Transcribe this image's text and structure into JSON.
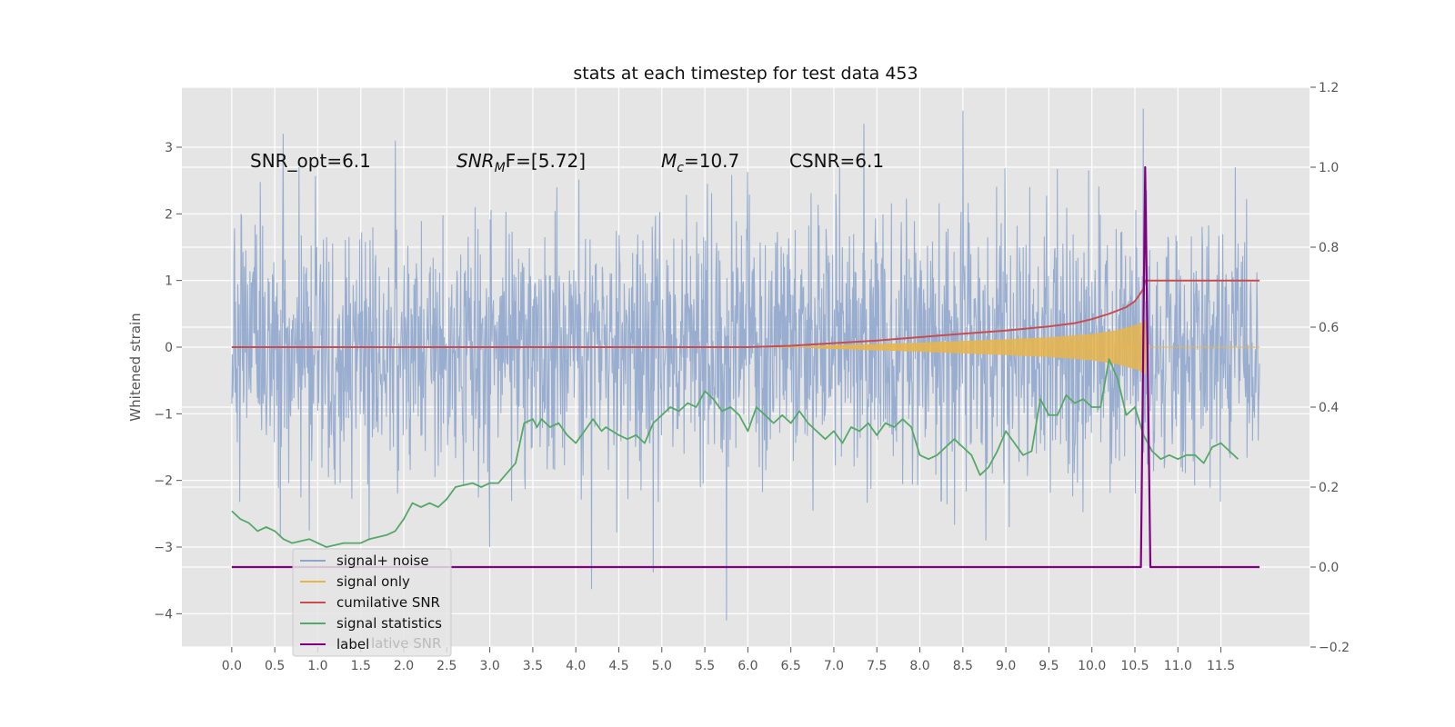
{
  "chart_data": {
    "type": "line",
    "title": "stats at each timestep for test data 453",
    "ylabel": "Whitened strain",
    "xlabel": "",
    "x_range": [
      0,
      11.95
    ],
    "xlim": [
      -0.58,
      12.53
    ],
    "ylim_left": [
      -4.5,
      3.9
    ],
    "ylim_right": [
      -0.2,
      1.2
    ],
    "grid": true,
    "legend_position": "lower-left",
    "x_ticks": [
      "0.0",
      "0.5",
      "1.0",
      "1.5",
      "2.0",
      "2.5",
      "3.0",
      "3.5",
      "4.0",
      "4.5",
      "5.0",
      "5.5",
      "6.0",
      "6.5",
      "7.0",
      "7.5",
      "8.0",
      "8.5",
      "9.0",
      "9.5",
      "10.0",
      "10.5",
      "11.0",
      "11.5"
    ],
    "y_ticks_left": [
      "−4",
      "−3",
      "−2",
      "−1",
      "0",
      "1",
      "2",
      "3"
    ],
    "y_ticks_right": [
      "−0.2",
      "0.0",
      "0.2",
      "0.4",
      "0.6",
      "0.8",
      "1.0",
      "1.2"
    ],
    "annotations": {
      "snr_opt": "SNR_opt=6.1",
      "snr_mf_main": "SNR",
      "snr_mf_sub": "M",
      "snr_mf_tail": "F=[5.72]",
      "mc_main": "M",
      "mc_sub": "c",
      "mc_tail": "=10.7",
      "csnr": "CSNR=6.1"
    },
    "legend": [
      "signal+ noise",
      "signal only",
      "cumilative SNR",
      "signal statistics",
      "label"
    ],
    "legend_overlap_text": "lative SNR",
    "colors": {
      "noise": "#8fa6cc",
      "signal": "#e8b54c",
      "cumulative_snr": "#c44e52",
      "statistics": "#55a868",
      "label": "#800080",
      "plot_bg": "#e5e5e5",
      "grid": "#ffffff"
    },
    "noise": {
      "seed": 453,
      "extreme_points": [
        {
          "x": 4.18,
          "y": -3.63
        },
        {
          "x": 5.75,
          "y": -4.1
        },
        {
          "x": 4.9,
          "y": -3.38
        },
        {
          "x": 3.0,
          "y": -3.0
        },
        {
          "x": 10.6,
          "y": 3.58
        },
        {
          "x": 8.5,
          "y": 3.55
        },
        {
          "x": 7.35,
          "y": 3.35
        },
        {
          "x": 0.6,
          "y": 3.2
        },
        {
          "x": 1.9,
          "y": 3.1
        }
      ]
    },
    "signal_envelope": [
      [
        0.0,
        0.0
      ],
      [
        6.6,
        0.0
      ],
      [
        7.0,
        0.02
      ],
      [
        8.0,
        0.06
      ],
      [
        9.0,
        0.11
      ],
      [
        9.5,
        0.14
      ],
      [
        10.0,
        0.19
      ],
      [
        10.3,
        0.25
      ],
      [
        10.55,
        0.34
      ],
      [
        10.62,
        0.4
      ],
      [
        10.63,
        0.0
      ],
      [
        11.95,
        0.0
      ]
    ],
    "cumulative_snr": [
      [
        0.0,
        0.0
      ],
      [
        6.0,
        0.0
      ],
      [
        6.5,
        0.02
      ],
      [
        7.0,
        0.06
      ],
      [
        7.5,
        0.1
      ],
      [
        8.0,
        0.15
      ],
      [
        8.5,
        0.2
      ],
      [
        9.0,
        0.25
      ],
      [
        9.5,
        0.31
      ],
      [
        9.8,
        0.36
      ],
      [
        10.0,
        0.42
      ],
      [
        10.2,
        0.5
      ],
      [
        10.4,
        0.6
      ],
      [
        10.5,
        0.69
      ],
      [
        10.55,
        0.78
      ],
      [
        10.6,
        0.88
      ],
      [
        10.62,
        1.0
      ],
      [
        11.95,
        1.0
      ]
    ],
    "signal_statistics": [
      [
        0.0,
        0.14
      ],
      [
        0.1,
        0.12
      ],
      [
        0.2,
        0.11
      ],
      [
        0.25,
        0.1
      ],
      [
        0.3,
        0.09
      ],
      [
        0.4,
        0.1
      ],
      [
        0.5,
        0.09
      ],
      [
        0.6,
        0.07
      ],
      [
        0.7,
        0.06
      ],
      [
        0.9,
        0.07
      ],
      [
        1.1,
        0.05
      ],
      [
        1.3,
        0.06
      ],
      [
        1.5,
        0.06
      ],
      [
        1.6,
        0.07
      ],
      [
        1.8,
        0.08
      ],
      [
        1.9,
        0.09
      ],
      [
        2.0,
        0.12
      ],
      [
        2.1,
        0.16
      ],
      [
        2.2,
        0.15
      ],
      [
        2.3,
        0.16
      ],
      [
        2.4,
        0.15
      ],
      [
        2.5,
        0.17
      ],
      [
        2.6,
        0.2
      ],
      [
        2.8,
        0.21
      ],
      [
        2.9,
        0.2
      ],
      [
        3.0,
        0.21
      ],
      [
        3.1,
        0.21
      ],
      [
        3.3,
        0.26
      ],
      [
        3.4,
        0.36
      ],
      [
        3.5,
        0.37
      ],
      [
        3.55,
        0.35
      ],
      [
        3.6,
        0.37
      ],
      [
        3.7,
        0.35
      ],
      [
        3.8,
        0.36
      ],
      [
        3.9,
        0.33
      ],
      [
        4.0,
        0.31
      ],
      [
        4.1,
        0.34
      ],
      [
        4.2,
        0.37
      ],
      [
        4.3,
        0.34
      ],
      [
        4.35,
        0.35
      ],
      [
        4.5,
        0.33
      ],
      [
        4.6,
        0.32
      ],
      [
        4.7,
        0.33
      ],
      [
        4.8,
        0.31
      ],
      [
        4.9,
        0.36
      ],
      [
        5.0,
        0.38
      ],
      [
        5.1,
        0.4
      ],
      [
        5.2,
        0.39
      ],
      [
        5.3,
        0.41
      ],
      [
        5.4,
        0.4
      ],
      [
        5.5,
        0.44
      ],
      [
        5.6,
        0.42
      ],
      [
        5.7,
        0.39
      ],
      [
        5.8,
        0.4
      ],
      [
        5.9,
        0.38
      ],
      [
        6.0,
        0.34
      ],
      [
        6.1,
        0.4
      ],
      [
        6.2,
        0.38
      ],
      [
        6.3,
        0.36
      ],
      [
        6.4,
        0.38
      ],
      [
        6.5,
        0.36
      ],
      [
        6.6,
        0.39
      ],
      [
        6.7,
        0.36
      ],
      [
        6.8,
        0.34
      ],
      [
        6.9,
        0.32
      ],
      [
        7.0,
        0.34
      ],
      [
        7.1,
        0.31
      ],
      [
        7.2,
        0.35
      ],
      [
        7.3,
        0.34
      ],
      [
        7.4,
        0.36
      ],
      [
        7.5,
        0.33
      ],
      [
        7.6,
        0.36
      ],
      [
        7.7,
        0.35
      ],
      [
        7.8,
        0.37
      ],
      [
        7.9,
        0.35
      ],
      [
        8.0,
        0.28
      ],
      [
        8.1,
        0.27
      ],
      [
        8.2,
        0.28
      ],
      [
        8.3,
        0.3
      ],
      [
        8.4,
        0.32
      ],
      [
        8.5,
        0.3
      ],
      [
        8.6,
        0.28
      ],
      [
        8.7,
        0.23
      ],
      [
        8.8,
        0.25
      ],
      [
        8.9,
        0.29
      ],
      [
        9.0,
        0.34
      ],
      [
        9.1,
        0.31
      ],
      [
        9.2,
        0.28
      ],
      [
        9.3,
        0.29
      ],
      [
        9.4,
        0.42
      ],
      [
        9.5,
        0.38
      ],
      [
        9.6,
        0.38
      ],
      [
        9.7,
        0.43
      ],
      [
        9.8,
        0.41
      ],
      [
        9.9,
        0.42
      ],
      [
        10.0,
        0.4
      ],
      [
        10.1,
        0.4
      ],
      [
        10.2,
        0.52
      ],
      [
        10.3,
        0.47
      ],
      [
        10.4,
        0.38
      ],
      [
        10.5,
        0.4
      ],
      [
        10.6,
        0.33
      ],
      [
        10.7,
        0.29
      ],
      [
        10.8,
        0.27
      ],
      [
        10.9,
        0.28
      ],
      [
        11.0,
        0.27
      ],
      [
        11.1,
        0.28
      ],
      [
        11.2,
        0.28
      ],
      [
        11.3,
        0.26
      ],
      [
        11.4,
        0.3
      ],
      [
        11.5,
        0.31
      ],
      [
        11.6,
        0.29
      ],
      [
        11.7,
        0.27
      ]
    ],
    "label_line": [
      [
        0.0,
        0.0
      ],
      [
        10.57,
        0.0
      ],
      [
        10.62,
        1.0
      ],
      [
        10.68,
        0.0
      ],
      [
        11.95,
        0.0
      ]
    ]
  }
}
